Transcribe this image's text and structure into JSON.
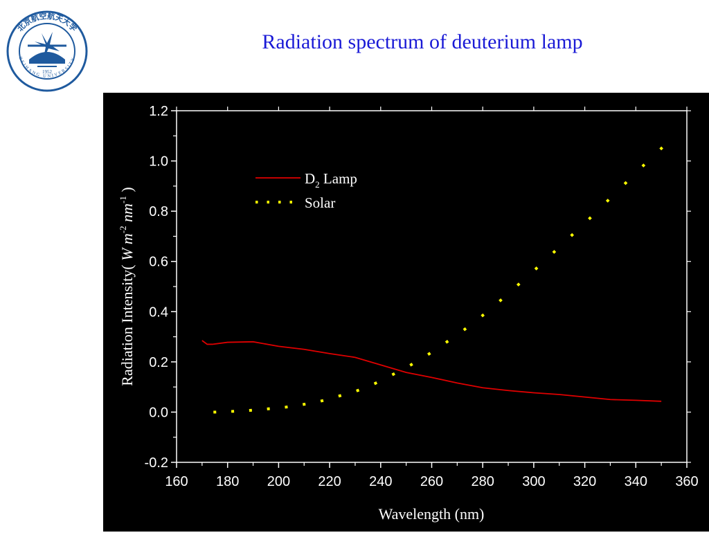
{
  "logo": {
    "chinese": "北京航空航天大学",
    "english": "BEIHANG UNIVERSITY",
    "year": "1952"
  },
  "slide": {
    "title": "Radiation spectrum of deuterium lamp"
  },
  "colors": {
    "title": "#1a1ad6",
    "background": "#000000",
    "axes": "#ffffff",
    "lamp": "#e00000",
    "solar": "#ffff00",
    "logo": "#1f5a9e"
  },
  "chart_data": {
    "type": "line",
    "xlabel": "Wavelength (nm)",
    "ylabel": {
      "main": "Radiation Intensity",
      "unit_open": "( ",
      "W": "W",
      "m": "m",
      "m_exp": "-2",
      "nm": "nm",
      "nm_exp": "-1",
      "unit_close": " )"
    },
    "xlim": [
      160,
      360
    ],
    "ylim": [
      -0.2,
      1.2
    ],
    "x_ticks": [
      "160",
      "180",
      "200",
      "220",
      "240",
      "260",
      "280",
      "300",
      "320",
      "340",
      "360"
    ],
    "y_ticks": [
      "-0.2",
      "0.0",
      "0.2",
      "0.4",
      "0.6",
      "0.8",
      "1.0",
      "1.2"
    ],
    "grid": false,
    "legend_position": "top-center",
    "legend": {
      "lamp_D": "D",
      "lamp_sub": "2",
      "lamp_rest": " Lamp",
      "solar": "Solar"
    },
    "series": [
      {
        "name": "D2 Lamp",
        "style": "solid",
        "x": [
          170,
          172,
          174,
          180,
          190,
          200,
          210,
          220,
          230,
          240,
          250,
          260,
          270,
          280,
          290,
          300,
          310,
          320,
          330,
          340,
          350
        ],
        "y": [
          0.285,
          0.27,
          0.27,
          0.278,
          0.28,
          0.262,
          0.25,
          0.233,
          0.218,
          0.188,
          0.158,
          0.138,
          0.116,
          0.097,
          0.086,
          0.077,
          0.07,
          0.06,
          0.05,
          0.047,
          0.043
        ]
      },
      {
        "name": "Solar",
        "style": "dotted",
        "x": [
          175,
          182,
          189,
          196,
          203,
          210,
          217,
          224,
          231,
          238,
          245,
          252,
          259,
          266,
          273,
          280,
          287,
          294,
          301,
          308,
          315,
          322,
          329,
          336,
          343,
          350
        ],
        "y": [
          0.0,
          0.003,
          0.007,
          0.013,
          0.02,
          0.031,
          0.045,
          0.065,
          0.086,
          0.115,
          0.151,
          0.189,
          0.232,
          0.28,
          0.33,
          0.385,
          0.445,
          0.508,
          0.572,
          0.638,
          0.705,
          0.772,
          0.842,
          0.912,
          0.982,
          1.05
        ]
      }
    ]
  }
}
